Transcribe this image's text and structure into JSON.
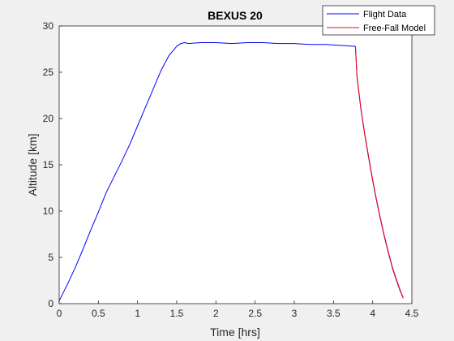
{
  "chart_data": {
    "type": "line",
    "title": "BEXUS 20",
    "xlabel": "Time [hrs]",
    "ylabel": "Altitude [km]",
    "xlim": [
      0,
      4.5
    ],
    "ylim": [
      0,
      30
    ],
    "xticks": [
      0,
      0.5,
      1,
      1.5,
      2,
      2.5,
      3,
      3.5,
      4,
      4.5
    ],
    "xtick_labels": [
      "0",
      "0.5",
      "1",
      "1.5",
      "2",
      "2.5",
      "3",
      "3.5",
      "4",
      "4.5"
    ],
    "yticks": [
      0,
      5,
      10,
      15,
      20,
      25,
      30
    ],
    "ytick_labels": [
      "0",
      "5",
      "10",
      "15",
      "20",
      "25",
      "30"
    ],
    "grid": false,
    "legend_position": "top-right",
    "series": [
      {
        "name": "Flight Data",
        "color": "#0000ff",
        "x": [
          0,
          0.1,
          0.2,
          0.3,
          0.4,
          0.5,
          0.6,
          0.7,
          0.8,
          0.9,
          1.0,
          1.1,
          1.2,
          1.3,
          1.4,
          1.5,
          1.55,
          1.6,
          1.65,
          1.8,
          2.0,
          2.2,
          2.4,
          2.6,
          2.8,
          3.0,
          3.2,
          3.4,
          3.6,
          3.78,
          3.8,
          3.85,
          3.9,
          3.95,
          4.0,
          4.05,
          4.1,
          4.15,
          4.2,
          4.25,
          4.3,
          4.35,
          4.39
        ],
        "y": [
          0.3,
          2.0,
          3.8,
          5.8,
          7.9,
          9.9,
          12.0,
          13.7,
          15.4,
          17.2,
          19.2,
          21.2,
          23.2,
          25.2,
          26.8,
          27.8,
          28.1,
          28.2,
          28.1,
          28.2,
          28.2,
          28.1,
          28.2,
          28.2,
          28.1,
          28.1,
          28.0,
          28.0,
          27.9,
          27.8,
          24.5,
          21.0,
          18.2,
          15.7,
          13.3,
          11.1,
          9.1,
          7.2,
          5.5,
          3.9,
          2.6,
          1.4,
          0.6
        ]
      },
      {
        "name": "Free-Fall Model",
        "color": "#ff0000",
        "x": [
          3.78,
          3.8,
          3.85,
          3.9,
          3.95,
          4.0,
          4.05,
          4.1,
          4.15,
          4.2,
          4.25,
          4.3,
          4.35,
          4.39
        ],
        "y": [
          27.8,
          24.6,
          21.1,
          18.3,
          15.8,
          13.4,
          11.2,
          9.2,
          7.3,
          5.6,
          4.0,
          2.7,
          1.5,
          0.6
        ]
      }
    ]
  }
}
